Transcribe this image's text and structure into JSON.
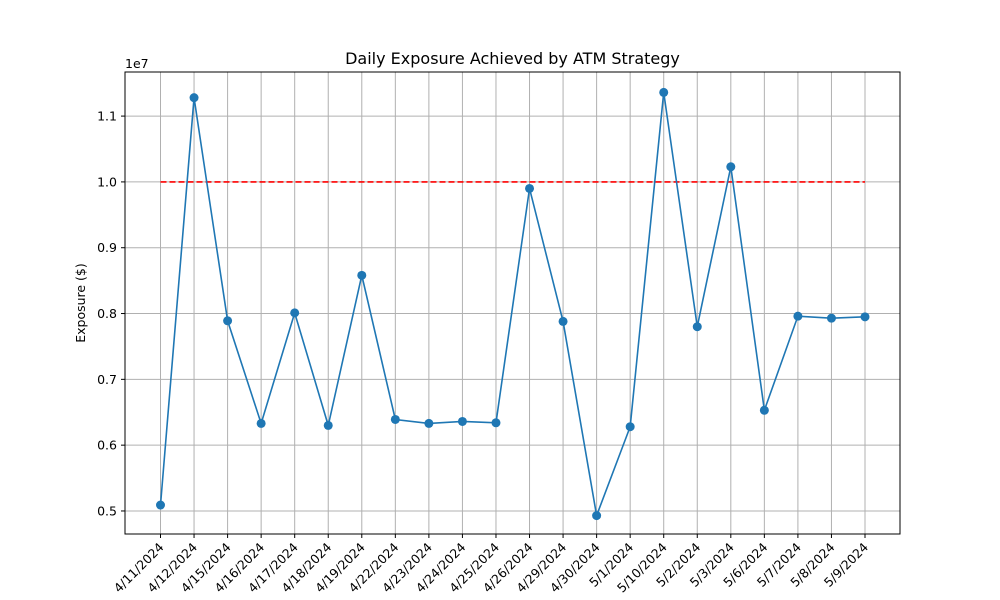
{
  "chart_data": {
    "type": "line",
    "title": "Daily Exposure Achieved by ATM Strategy",
    "xlabel": "",
    "ylabel": "Exposure ($)",
    "y_multiplier_label": "1e7",
    "y_multiplier": 10000000,
    "categories": [
      "4/11/2024",
      "4/12/2024",
      "4/15/2024",
      "4/16/2024",
      "4/17/2024",
      "4/18/2024",
      "4/19/2024",
      "4/22/2024",
      "4/23/2024",
      "4/24/2024",
      "4/25/2024",
      "4/26/2024",
      "4/29/2024",
      "4/30/2024",
      "5/1/2024",
      "5/10/2024",
      "5/2/2024",
      "5/3/2024",
      "5/6/2024",
      "5/7/2024",
      "5/8/2024",
      "5/9/2024"
    ],
    "series": [
      {
        "values": [
          5090000,
          11280000,
          7890000,
          6330000,
          8010000,
          6300000,
          8580000,
          6390000,
          6330000,
          6360000,
          6340000,
          9900000,
          7880000,
          4930000,
          6280000,
          11360000,
          7800000,
          10230000,
          6530000,
          7960000,
          7930000,
          7950000
        ]
      }
    ],
    "reference_line": {
      "y": 10000000,
      "color": "#ff0000",
      "style": "dashed"
    },
    "y_ticks": [
      5000000,
      6000000,
      7000000,
      8000000,
      9000000,
      10000000,
      11000000
    ],
    "y_tick_labels": [
      "0.5",
      "0.6",
      "0.7",
      "0.8",
      "0.9",
      "1.0",
      "1.1"
    ],
    "ylim": [
      4650000,
      11670000
    ],
    "grid": true,
    "series_color": "#1f77b4"
  }
}
